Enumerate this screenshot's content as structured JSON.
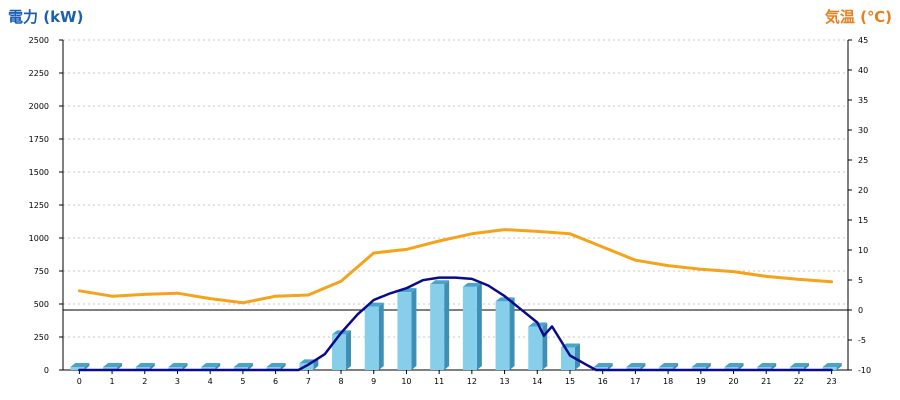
{
  "left_axis_title": "電力 (kW)",
  "right_axis_title": "気温 (℃)",
  "chart_data": {
    "type": "bar",
    "categories": [
      "0",
      "1",
      "2",
      "3",
      "4",
      "5",
      "6",
      "7",
      "8",
      "9",
      "10",
      "11",
      "12",
      "13",
      "14",
      "15",
      "16",
      "17",
      "18",
      "19",
      "20",
      "21",
      "22",
      "23"
    ],
    "y_left": {
      "label": "電力 (kW)",
      "range": [
        0,
        2500
      ],
      "ticks": [
        "0",
        "250",
        "500",
        "750",
        "1000",
        "1250",
        "1500",
        "1750",
        "2000",
        "2250",
        "2500"
      ]
    },
    "y_right": {
      "label": "気温 (℃)",
      "range": [
        -10,
        45
      ],
      "ticks": [
        "-10",
        "-5",
        "0",
        "5",
        "10",
        "15",
        "20",
        "25",
        "30",
        "35",
        "40",
        "45"
      ]
    },
    "grid": true,
    "bar_series": {
      "axis": "left",
      "color": "#87ceeb",
      "values": [
        0,
        0,
        0,
        0,
        0,
        0,
        0,
        50,
        270,
        480,
        590,
        650,
        630,
        520,
        330,
        170,
        0,
        0,
        0,
        0,
        0,
        0,
        0,
        0
      ]
    },
    "power_line": {
      "axis": "left",
      "color": "#0a0a8a",
      "points": [
        [
          0,
          0
        ],
        [
          1,
          0
        ],
        [
          2,
          0
        ],
        [
          3,
          0
        ],
        [
          4,
          0
        ],
        [
          5,
          0
        ],
        [
          6,
          0
        ],
        [
          6.7,
          0
        ],
        [
          7,
          40
        ],
        [
          7.5,
          120
        ],
        [
          8,
          280
        ],
        [
          8.5,
          420
        ],
        [
          9,
          530
        ],
        [
          9.5,
          580
        ],
        [
          10,
          620
        ],
        [
          10.5,
          680
        ],
        [
          11,
          700
        ],
        [
          11.5,
          700
        ],
        [
          12,
          690
        ],
        [
          12.5,
          640
        ],
        [
          13,
          560
        ],
        [
          13.5,
          460
        ],
        [
          14,
          360
        ],
        [
          14.2,
          260
        ],
        [
          14.45,
          330
        ],
        [
          14.7,
          230
        ],
        [
          15,
          110
        ],
        [
          15.5,
          40
        ],
        [
          15.8,
          0
        ],
        [
          16,
          0
        ],
        [
          17,
          0
        ],
        [
          18,
          0
        ],
        [
          19,
          0
        ],
        [
          20,
          0
        ],
        [
          21,
          0
        ],
        [
          22,
          0
        ],
        [
          23,
          0
        ]
      ]
    },
    "temperature_line": {
      "axis": "right",
      "color": "#f5a31a",
      "values": [
        3.2,
        2.3,
        2.6,
        2.8,
        1.9,
        1.2,
        2.3,
        2.5,
        4.8,
        9.5,
        10.1,
        11.5,
        12.7,
        13.4,
        13.1,
        12.7,
        10.5,
        8.3,
        7.4,
        6.8,
        6.4,
        5.6,
        5.1,
        4.7
      ]
    },
    "zero_line_right": 0
  }
}
